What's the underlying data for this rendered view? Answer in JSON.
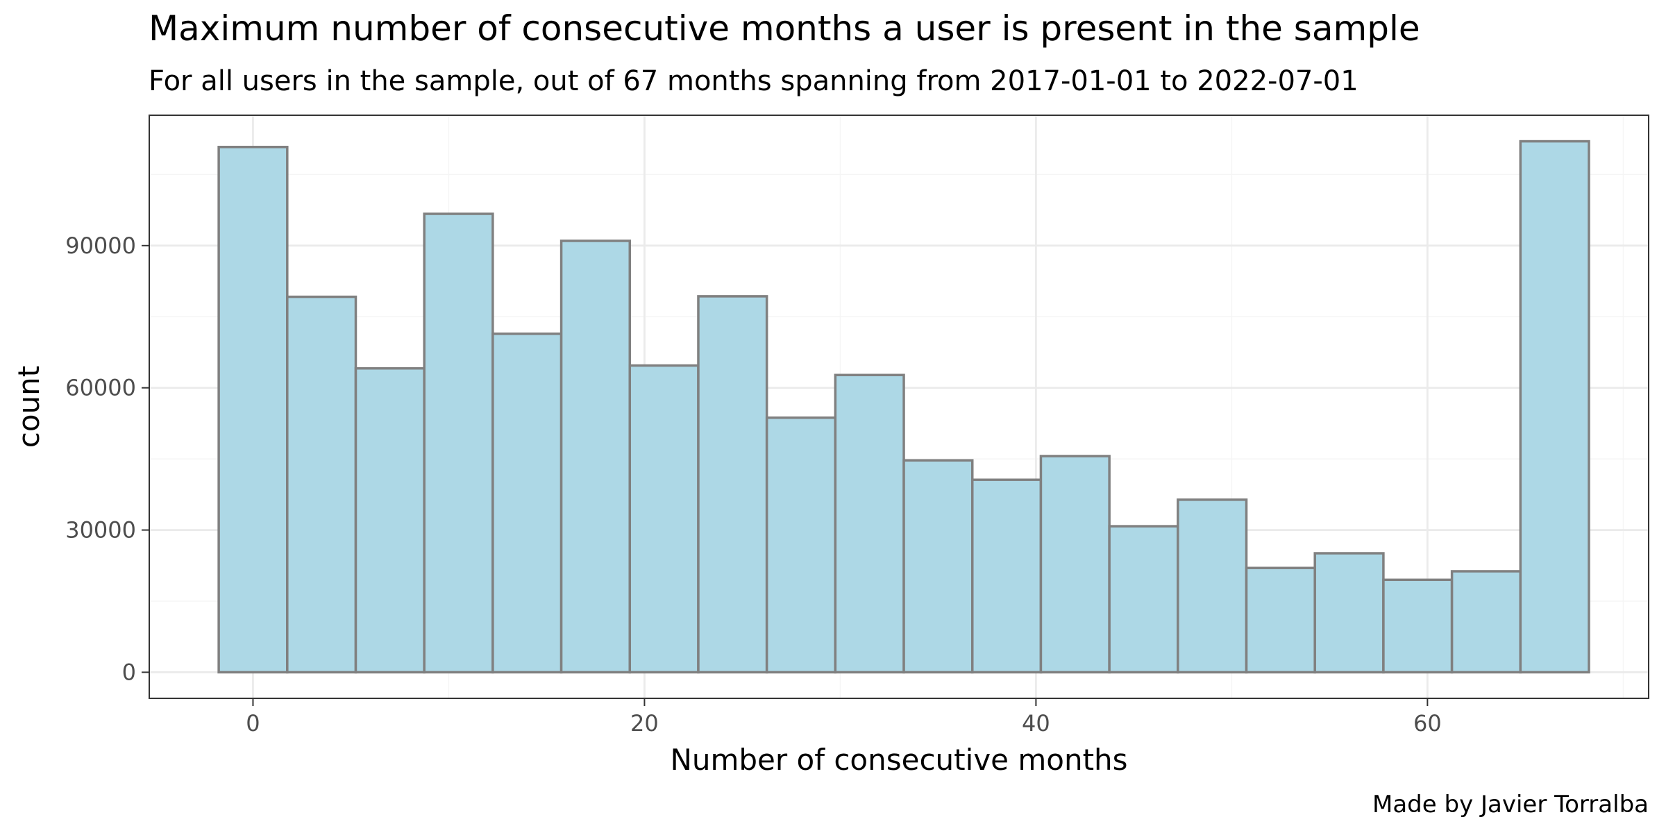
{
  "chart_data": {
    "type": "bar",
    "title": "Maximum number of consecutive months a user is present in the sample",
    "subtitle": "For all users in the sample, out of 67 months spanning from 2017-01-01 to 2022-07-01",
    "caption": "Made by Javier Torralba",
    "xlabel": "Number of consecutive months",
    "ylabel": "count",
    "xlim": [
      -5.3,
      71.3
    ],
    "ylim": [
      -5500,
      117500
    ],
    "x_ticks": [
      0,
      20,
      40,
      60
    ],
    "y_ticks": [
      0,
      30000,
      60000,
      90000
    ],
    "x_tick_labels": [
      "0",
      "20",
      "40",
      "60"
    ],
    "y_tick_labels": [
      "0",
      "30000",
      "60000",
      "90000"
    ],
    "bin_width": 3.5,
    "bins": [
      {
        "x_start": -1.75,
        "x_end": 1.75,
        "count": 110800
      },
      {
        "x_start": 1.75,
        "x_end": 5.25,
        "count": 79200
      },
      {
        "x_start": 5.25,
        "x_end": 8.75,
        "count": 64100
      },
      {
        "x_start": 8.75,
        "x_end": 12.25,
        "count": 96700
      },
      {
        "x_start": 12.25,
        "x_end": 15.75,
        "count": 71400
      },
      {
        "x_start": 15.75,
        "x_end": 19.25,
        "count": 91000
      },
      {
        "x_start": 19.25,
        "x_end": 22.75,
        "count": 64700
      },
      {
        "x_start": 22.75,
        "x_end": 26.25,
        "count": 79300
      },
      {
        "x_start": 26.25,
        "x_end": 29.75,
        "count": 53700
      },
      {
        "x_start": 29.75,
        "x_end": 33.25,
        "count": 62700
      },
      {
        "x_start": 33.25,
        "x_end": 36.75,
        "count": 44700
      },
      {
        "x_start": 36.75,
        "x_end": 40.25,
        "count": 40600
      },
      {
        "x_start": 40.25,
        "x_end": 43.75,
        "count": 45600
      },
      {
        "x_start": 43.75,
        "x_end": 47.25,
        "count": 30800
      },
      {
        "x_start": 47.25,
        "x_end": 50.75,
        "count": 36400
      },
      {
        "x_start": 50.75,
        "x_end": 54.25,
        "count": 22000
      },
      {
        "x_start": 54.25,
        "x_end": 57.75,
        "count": 25100
      },
      {
        "x_start": 57.75,
        "x_end": 61.25,
        "count": 19500
      },
      {
        "x_start": 61.25,
        "x_end": 64.75,
        "count": 21300
      },
      {
        "x_start": 64.75,
        "x_end": 68.25,
        "count": 112000
      }
    ],
    "grid": true,
    "legend": "none",
    "colors": {
      "bar_fill": "#add8e6",
      "bar_stroke": "#808080",
      "grid_major": "#ebebeb",
      "grid_minor": "#f5f5f5",
      "panel_border": "#333333",
      "tick_text": "#4d4d4d",
      "background": "#ffffff"
    }
  }
}
